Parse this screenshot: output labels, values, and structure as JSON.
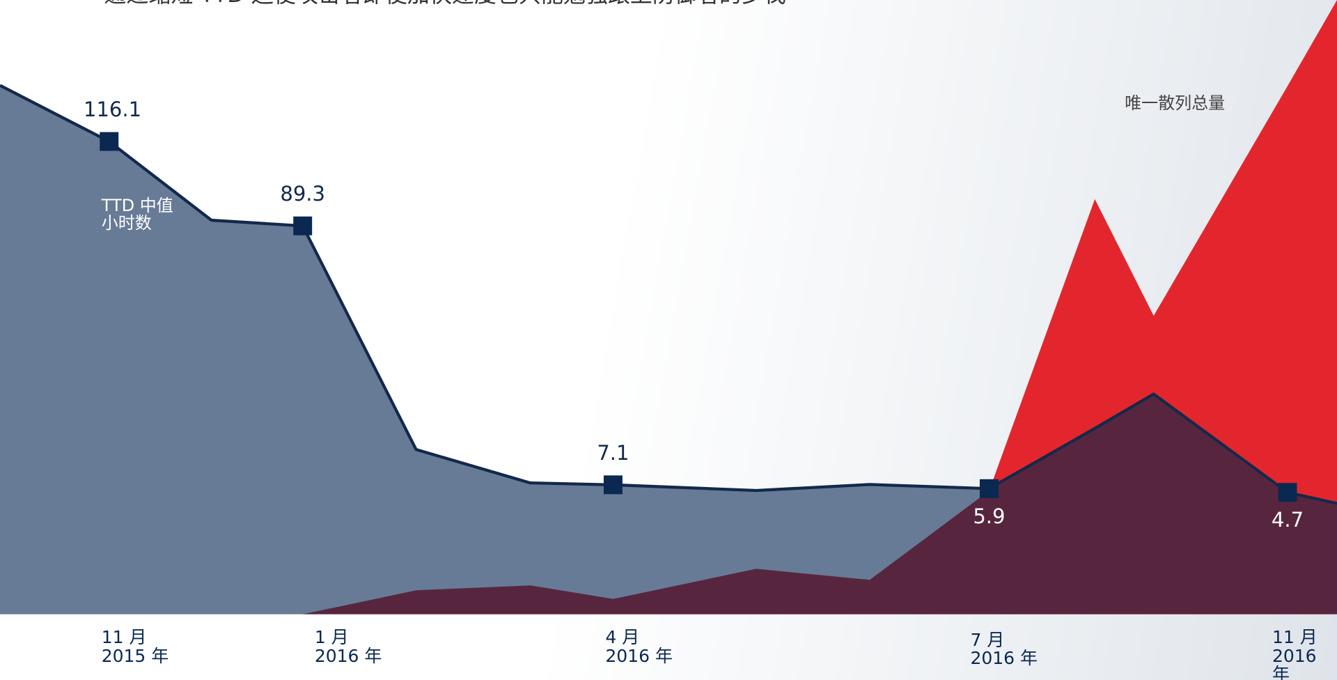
{
  "chart_data": {
    "type": "line",
    "title": "通过缩短 TTD 迫使攻击者即使加快速度也只能勉强跟上防御者的步伐",
    "categories": [
      null,
      "11 月\n2015 年",
      null,
      "1 月\n2016 年",
      null,
      null,
      "4 月\n2016 年",
      null,
      null,
      "7 月\n2016 年",
      null,
      null,
      "11 月\n2016\n年",
      null
    ],
    "series": [
      {
        "name": "TTD 中值\n小时数",
        "color": "#677b96",
        "line_color": "#13294b",
        "values": [
          133.9,
          116.1,
          91.1,
          89.3,
          18.3,
          7.7,
          7.1,
          5.3,
          7.2,
          5.9,
          25.0,
          35.9,
          4.7,
          1.2
        ],
        "value_labels": [
          null,
          "116.1",
          null,
          "89.3",
          null,
          null,
          "7.1",
          null,
          null,
          "5.9",
          null,
          null,
          "4.7",
          null
        ]
      },
      {
        "name": "唯一散列总量",
        "color": "#e3262d",
        "axis": "y2",
        "values": [
          0,
          0,
          0,
          0,
          3.9,
          4.7,
          2.5,
          7.4,
          5.6,
          20.1,
          67.6,
          48.6,
          86,
          100
        ]
      }
    ],
    "overlap_color": "#58253f",
    "ylim": [
      -34,
      161
    ],
    "y2lim": [
      0,
      100
    ]
  }
}
